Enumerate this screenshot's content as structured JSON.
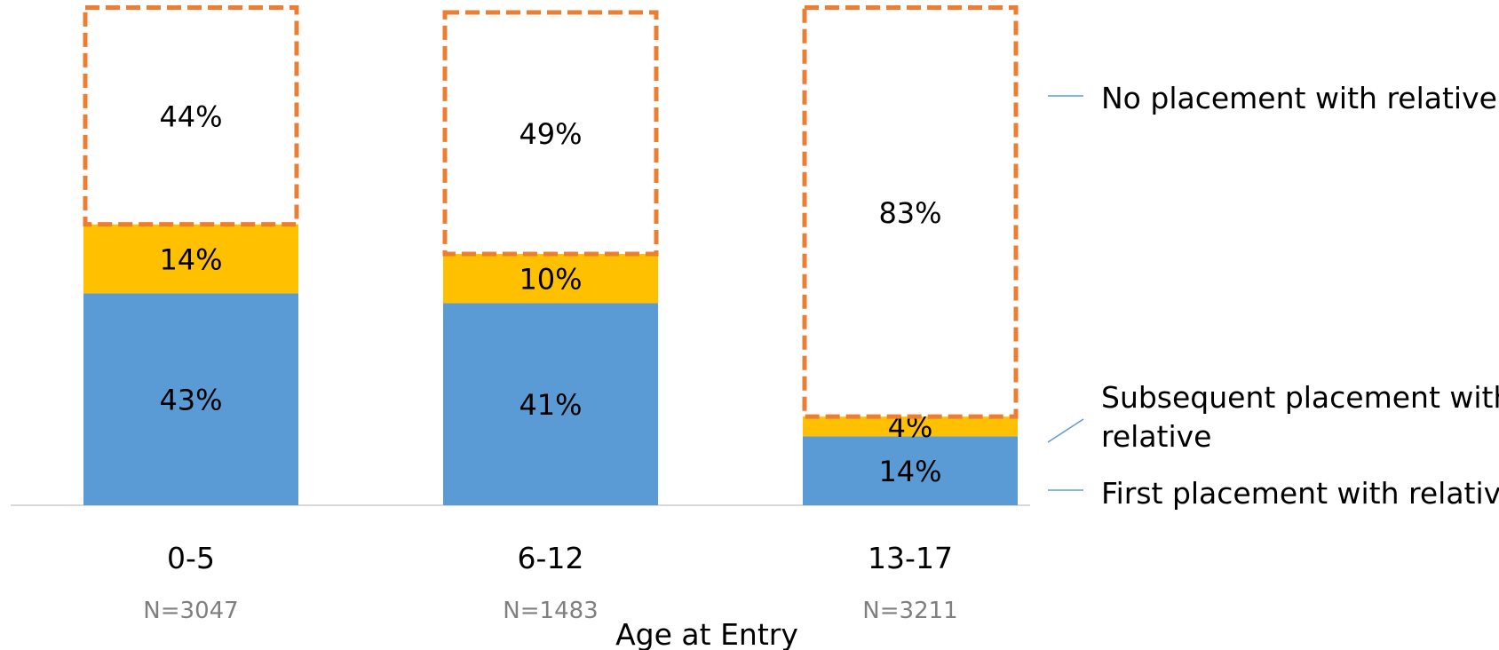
{
  "chart_data": {
    "type": "bar",
    "stacked": true,
    "xlabel": "Age at Entry",
    "ylabel": "",
    "ylim": [
      0,
      100
    ],
    "categories": [
      "0-5",
      "6-12",
      "13-17"
    ],
    "sample_sizes": [
      "N=3047",
      "N=1483",
      "N=3211"
    ],
    "series": [
      {
        "name": "First placement with relative",
        "values": [
          43,
          41,
          14
        ],
        "labels": [
          "43%",
          "41%",
          "14%"
        ],
        "color": "#5b9bd5"
      },
      {
        "name": "Subsequent placement with relative",
        "values": [
          14,
          10,
          4
        ],
        "labels": [
          "14%",
          "10%",
          "4%"
        ],
        "color": "#ffc000"
      },
      {
        "name": "No placement with relative",
        "values": [
          44,
          49,
          83
        ],
        "labels": [
          "44%",
          "49%",
          "83%"
        ],
        "color": "#ffffff",
        "border_color": "#ed7d31",
        "border_style": "dashed"
      }
    ],
    "legend": {
      "placement": "right",
      "line_color": "#5b9bd5",
      "entries": [
        {
          "lines": [
            "No placement with relative"
          ]
        },
        {
          "lines": [
            "Subsequent placement with",
            "relative"
          ]
        },
        {
          "lines": [
            "First placement with relative"
          ]
        }
      ]
    },
    "grid": false
  }
}
